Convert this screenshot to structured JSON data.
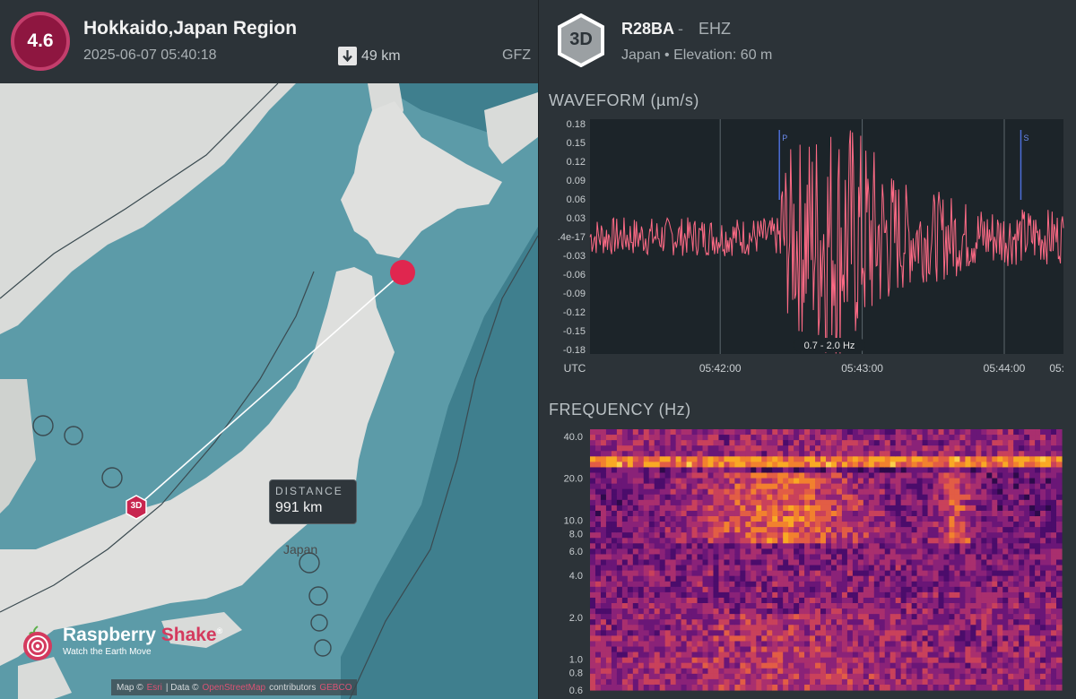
{
  "event": {
    "magnitude": "4.6",
    "region": "Hokkaido,Japan Region",
    "datetime": "2025-06-07 05:40:18",
    "depth": "49 km",
    "source": "GFZ"
  },
  "map": {
    "distance_label": "DISTANCE",
    "distance_value": "991 km",
    "country_label": "Japan",
    "station_marker": "3D",
    "brand_name_1": "Raspberry",
    "brand_name_2": "Shake",
    "brand_mark": "®",
    "brand_tagline": "Watch the Earth Move",
    "attribution": {
      "prefix": "Map ©",
      "link1": "Esri",
      "mid": "| Data ©",
      "link2": "OpenStreetMap",
      "suffix": "contributors",
      "link3": "GEBCO"
    },
    "colors": {
      "land": "#d9dbd9",
      "sea": "#3f7f8e",
      "epicenter": "#e0264f",
      "station": "#c8254f"
    }
  },
  "station": {
    "badge": "3D",
    "code": "R28BA",
    "separator": "-",
    "channel": "EHZ",
    "location": "Japan • Elevation: 60 m"
  },
  "waveform": {
    "title": "WAVEFORM (µm/s)",
    "filter_label": "0.7 - 2.0 Hz",
    "p_label": "P",
    "s_label": "S",
    "color": "#ff6b86"
  },
  "frequency": {
    "title": "FREQUENCY (Hz)"
  },
  "chart_data": [
    {
      "type": "line",
      "ylabel": "µm/s",
      "y_ticks": [
        "0.18",
        "0.15",
        "0.12",
        "0.09",
        "0.06",
        "0.03",
        ".4e-17",
        "-0.03",
        "-0.06",
        "-0.09",
        "-0.12",
        "-0.15",
        "-0.18"
      ],
      "x_ticks": [
        "UTC",
        "05:42:00",
        "05:43:00",
        "05:44:00",
        "05:"
      ],
      "ylim": [
        -0.18,
        0.18
      ],
      "xlim": [
        "05:41:05",
        "05:44:25"
      ],
      "phase_markers": [
        {
          "name": "P",
          "time": "05:42:25"
        },
        {
          "name": "S",
          "time": "05:44:07"
        }
      ],
      "grid": true
    },
    {
      "type": "heatmap",
      "y_ticks": [
        "40.0",
        "20.0",
        "10.0",
        "8.0",
        "6.0",
        "4.0",
        "2.0",
        "1.0",
        "0.8",
        "0.6"
      ],
      "y_scale": "log",
      "ylim": [
        0.6,
        45
      ]
    }
  ]
}
